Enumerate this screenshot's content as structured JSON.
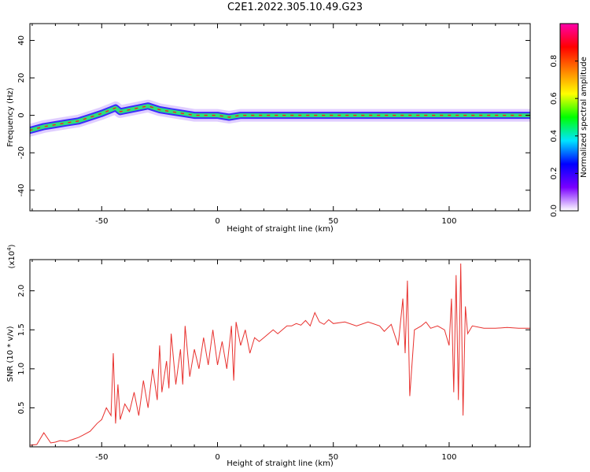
{
  "title": "C2E1.2022.305.10.49.G23",
  "colors": {
    "snr_line": "#e8312e",
    "track_core": "#2ee07a",
    "track_edge": "#3b2bff",
    "track_halo": "#c7a6ff",
    "track_peak": "#ff1a1a"
  },
  "chart_data": [
    {
      "type": "heatmap",
      "xlabel": "Height of straight line (km)",
      "ylabel": "Frequency (Hz)",
      "xlim": [
        -81,
        135
      ],
      "ylim": [
        -51,
        49
      ],
      "xticks": [
        -50,
        0,
        50,
        100
      ],
      "yticks": [
        -40,
        -20,
        0,
        20,
        40
      ],
      "colorbar": {
        "label": "Normalized spectral amplitude",
        "range": [
          0,
          1
        ],
        "ticks": [
          "0.0",
          "0.2",
          "0.4",
          "0.6",
          "0.8"
        ],
        "tick_values": [
          0,
          0.2,
          0.4,
          0.6,
          0.8
        ],
        "colormap": [
          "#ffffff",
          "#7a00ff",
          "#0000ff",
          "#00e5ff",
          "#00ff00",
          "#ffff00",
          "#ff8000",
          "#ff0000",
          "#ff00aa"
        ]
      },
      "frequency_track": {
        "x": [
          -81,
          -75,
          -70,
          -65,
          -60,
          -55,
          -50,
          -46,
          -44,
          -42,
          -38,
          -34,
          -30,
          -25,
          -20,
          -15,
          -10,
          -5,
          0,
          5,
          10,
          20,
          30,
          40,
          50,
          60,
          70,
          80,
          90,
          100,
          110,
          120,
          135
        ],
        "y": [
          -8,
          -6,
          -5,
          -4,
          -3,
          -1,
          1,
          3,
          4,
          2,
          3,
          4,
          5,
          3,
          2,
          1,
          0,
          0,
          0,
          -1,
          0,
          0,
          0,
          0,
          0,
          0,
          0,
          0,
          0,
          0,
          0,
          0,
          0
        ]
      }
    },
    {
      "type": "line",
      "xlabel": "Height of straight line (km)",
      "ylabel": "SNR (10 * v/v)",
      "y_multiplier": "(x10^4)",
      "multiplier_base": "(x10",
      "multiplier_exp": "4",
      "multiplier_close": ")",
      "xlim": [
        -81,
        135
      ],
      "ylim": [
        0.0,
        2.4
      ],
      "xticks": [
        -50,
        0,
        50,
        100
      ],
      "yticks": [
        0.5,
        1.0,
        1.5,
        2.0
      ],
      "ytick_labels": [
        "0.5",
        "1.0",
        "1.5",
        "2.0"
      ],
      "series": [
        {
          "x": [
            -81,
            -78,
            -75,
            -72,
            -70,
            -68,
            -65,
            -62,
            -60,
            -58,
            -55,
            -52,
            -50,
            -48,
            -46,
            -45,
            -44,
            -43,
            -42,
            -40,
            -38,
            -36,
            -34,
            -32,
            -30,
            -28,
            -26,
            -25,
            -24,
            -22,
            -21,
            -20,
            -18,
            -16,
            -15,
            -14,
            -12,
            -10,
            -8,
            -6,
            -4,
            -2,
            0,
            2,
            4,
            6,
            7,
            8,
            10,
            12,
            14,
            16,
            18,
            20,
            22,
            24,
            26,
            28,
            30,
            32,
            34,
            36,
            38,
            40,
            42,
            44,
            46,
            48,
            50,
            55,
            60,
            65,
            70,
            72,
            75,
            78,
            80,
            81,
            82,
            83,
            85,
            88,
            90,
            92,
            95,
            98,
            100,
            101,
            102,
            103,
            104,
            105,
            106,
            107,
            108,
            110,
            115,
            120,
            125,
            130,
            135
          ],
          "y": [
            0.02,
            0.03,
            0.18,
            0.05,
            0.06,
            0.08,
            0.07,
            0.1,
            0.12,
            0.15,
            0.2,
            0.3,
            0.35,
            0.5,
            0.4,
            1.2,
            0.3,
            0.8,
            0.35,
            0.55,
            0.45,
            0.7,
            0.4,
            0.85,
            0.5,
            1.0,
            0.6,
            1.3,
            0.7,
            1.1,
            0.75,
            1.45,
            0.8,
            1.25,
            0.8,
            1.55,
            0.9,
            1.25,
            1.0,
            1.4,
            1.05,
            1.5,
            1.05,
            1.35,
            1.0,
            1.55,
            0.85,
            1.6,
            1.3,
            1.5,
            1.2,
            1.4,
            1.35,
            1.4,
            1.45,
            1.5,
            1.45,
            1.5,
            1.55,
            1.55,
            1.58,
            1.56,
            1.62,
            1.55,
            1.72,
            1.6,
            1.57,
            1.63,
            1.58,
            1.6,
            1.55,
            1.6,
            1.55,
            1.48,
            1.57,
            1.3,
            1.9,
            1.2,
            2.13,
            0.65,
            1.5,
            1.55,
            1.6,
            1.52,
            1.55,
            1.5,
            1.3,
            1.9,
            0.7,
            2.2,
            0.6,
            2.35,
            0.4,
            1.8,
            1.45,
            1.55,
            1.52,
            1.52,
            1.53,
            1.52,
            1.52
          ]
        }
      ]
    }
  ]
}
